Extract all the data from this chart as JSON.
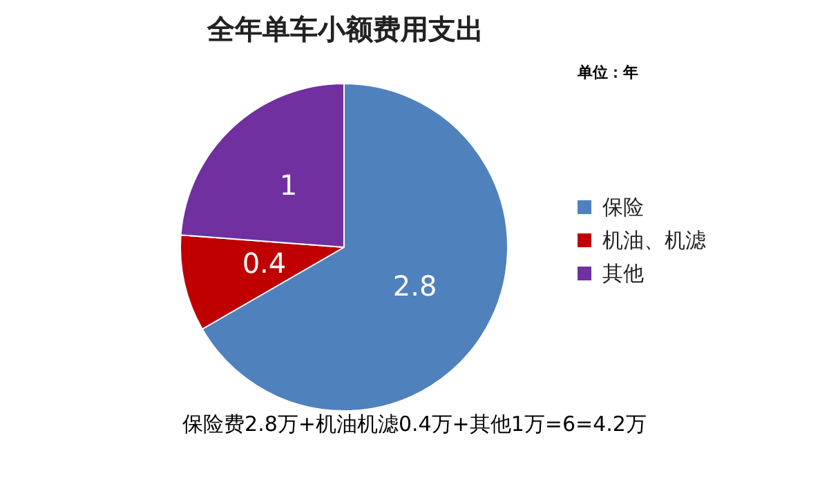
{
  "chart_data": {
    "type": "pie",
    "title": "全年单车小额费用支出",
    "categories": [
      "保险",
      "机油、机滤",
      "其他"
    ],
    "values": [
      2.8,
      0.4,
      1
    ],
    "colors": [
      "#4f81bd",
      "#c00000",
      "#7030a0"
    ],
    "data_labels": true,
    "legend": "right",
    "annotations": [
      "单位：年",
      "保险费2.8万+机油机滤0.4万+其他1万=6=4.2万"
    ]
  }
}
